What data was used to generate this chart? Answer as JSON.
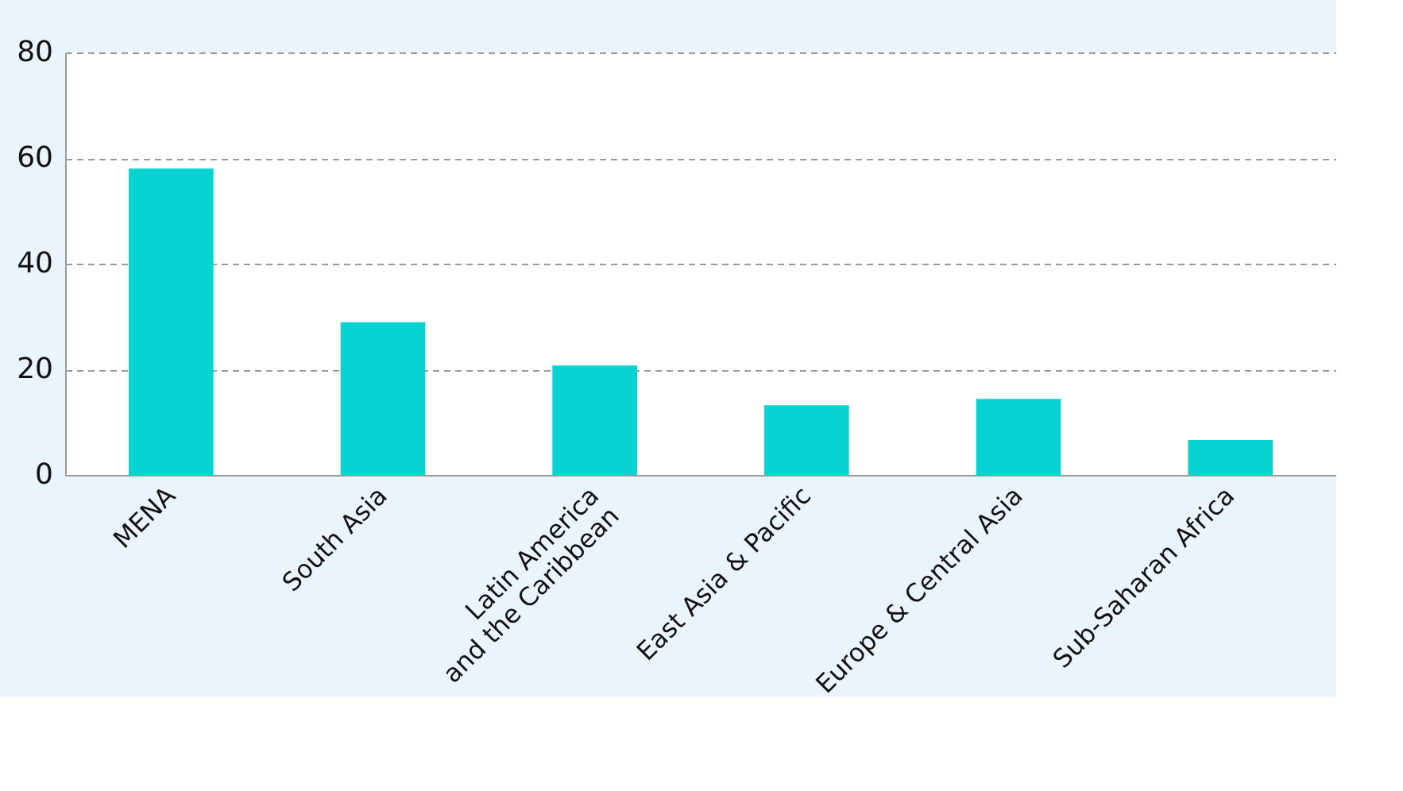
{
  "chart_data": {
    "type": "bar",
    "categories": [
      "MENA",
      "South Asia",
      "Latin America and the Caribbean",
      "East Asia & Pacific",
      "Europe & Central Asia",
      "Sub-Saharan Africa"
    ],
    "values": [
      58.0,
      28.9,
      20.7,
      13.2,
      14.4,
      6.6
    ],
    "color": "#07d3d3",
    "ylim": [
      0,
      80
    ],
    "yticks": [
      0,
      20,
      40,
      60,
      80
    ],
    "grid": "y"
  }
}
